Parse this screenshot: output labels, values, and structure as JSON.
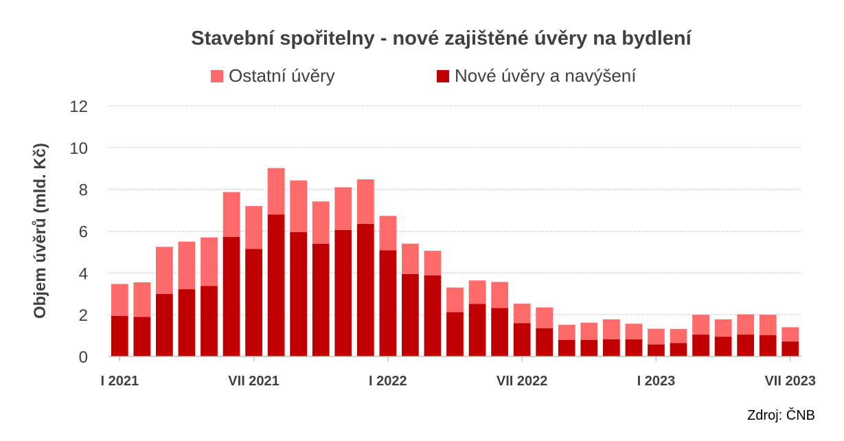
{
  "chart_data": {
    "type": "bar",
    "stacked": true,
    "title": "Stavební spořitelny - nové zajištěné úvěry na bydlení",
    "ylabel": "Objem úvěrů (mld. Kč)",
    "xlabel": "",
    "ylim": [
      0,
      12
    ],
    "yticks": [
      "0",
      "2",
      "4",
      "6",
      "8",
      "10",
      "12"
    ],
    "grid": true,
    "legend_position": "top",
    "x_tick_labels": [
      {
        "index": 0,
        "label": "I 2021"
      },
      {
        "index": 6,
        "label": "VII 2021"
      },
      {
        "index": 12,
        "label": "I 2022"
      },
      {
        "index": 18,
        "label": "VII 2022"
      },
      {
        "index": 24,
        "label": "I 2023"
      },
      {
        "index": 30,
        "label": "VII 2023"
      }
    ],
    "categories": [
      "2021-01",
      "2021-02",
      "2021-03",
      "2021-04",
      "2021-05",
      "2021-06",
      "2021-07",
      "2021-08",
      "2021-09",
      "2021-10",
      "2021-11",
      "2021-12",
      "2022-01",
      "2022-02",
      "2022-03",
      "2022-04",
      "2022-05",
      "2022-06",
      "2022-07",
      "2022-08",
      "2022-09",
      "2022-10",
      "2022-11",
      "2022-12",
      "2023-01",
      "2023-02",
      "2023-03",
      "2023-04",
      "2023-05",
      "2023-06",
      "2023-07"
    ],
    "series": [
      {
        "name": "Nové úvěry a navýšení",
        "color": "#c00000",
        "values": [
          1.95,
          1.9,
          3.0,
          3.22,
          3.38,
          5.72,
          5.15,
          6.8,
          5.95,
          5.4,
          6.05,
          6.35,
          5.08,
          3.95,
          3.88,
          2.12,
          2.52,
          2.32,
          1.6,
          1.35,
          0.8,
          0.8,
          0.82,
          0.82,
          0.58,
          0.65,
          1.05,
          0.95,
          1.05,
          1.02,
          0.72
        ]
      },
      {
        "name": "Ostatní úvěry",
        "color": "#ff6b6b",
        "values": [
          1.52,
          1.65,
          2.25,
          2.28,
          2.32,
          2.15,
          2.05,
          2.22,
          2.48,
          2.02,
          2.05,
          2.13,
          1.65,
          1.45,
          1.18,
          1.18,
          1.12,
          1.25,
          0.93,
          1.0,
          0.72,
          0.82,
          0.96,
          0.75,
          0.75,
          0.67,
          0.95,
          0.83,
          0.97,
          0.98,
          0.68
        ]
      }
    ],
    "source": "Zdroj: ČNB"
  }
}
